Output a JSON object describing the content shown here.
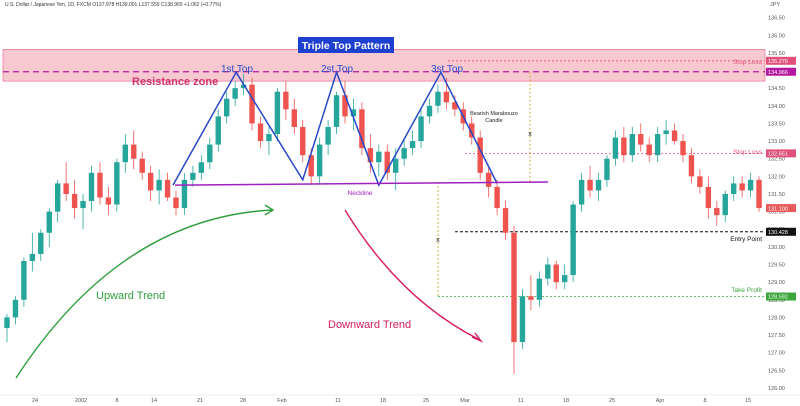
{
  "header": {
    "ticker_info": "U.S. Dollar / Japanese Yen, 1D, FXCM  O137.978  H139.001  L137.559  C138.965  +1.062 (+0.77%)",
    "currency": "JPY"
  },
  "chart_data": {
    "type": "candlestick",
    "title": "Triple Top Pattern",
    "y_axis": {
      "range": [
        125.8,
        137.0
      ],
      "ticks": [
        "136.50",
        "136.00",
        "135.50",
        "135.00",
        "134.50",
        "134.00",
        "133.50",
        "133.00",
        "132.50",
        "132.00",
        "131.50",
        "131.00",
        "130.50",
        "130.00",
        "129.50",
        "129.00",
        "128.50",
        "128.00",
        "127.50",
        "127.00",
        "126.50",
        "126.00"
      ]
    },
    "x_axis": {
      "ticks": [
        "24",
        "2002",
        "8",
        "14",
        "21",
        "28",
        "Feb",
        "11",
        "18",
        "25",
        "Mar",
        "11",
        "18",
        "25",
        "Apr",
        "8",
        "15"
      ]
    },
    "price_labels": [
      {
        "value": "135.276",
        "color": "#e0507a"
      },
      {
        "value": "134.966",
        "color": "#b5179e"
      },
      {
        "value": "132.651",
        "color": "#e0507a"
      },
      {
        "value": "131.100",
        "color": "#e85a5a"
      },
      {
        "value": "130.428",
        "color": "#111111"
      },
      {
        "value": "128.592",
        "color": "#3ca53c"
      }
    ],
    "levels": {
      "resistance_zone": [
        134.7,
        135.6
      ],
      "resistance_line": 134.966,
      "stop_loss_1": 135.276,
      "stop_loss_2": 132.651,
      "entry_point": 130.428,
      "take_profit": 128.592,
      "neckline_start": 131.75,
      "neckline_end": 131.84
    },
    "candles": [
      {
        "o": 127.7,
        "h": 128.1,
        "l": 127.3,
        "c": 128.0
      },
      {
        "o": 128.0,
        "h": 128.6,
        "l": 127.8,
        "c": 128.5
      },
      {
        "o": 128.5,
        "h": 129.7,
        "l": 128.3,
        "c": 129.6
      },
      {
        "o": 129.6,
        "h": 130.4,
        "l": 129.3,
        "c": 129.8
      },
      {
        "o": 129.8,
        "h": 130.5,
        "l": 129.6,
        "c": 130.4
      },
      {
        "o": 130.4,
        "h": 131.1,
        "l": 130.0,
        "c": 131.0
      },
      {
        "o": 131.0,
        "h": 131.9,
        "l": 130.7,
        "c": 131.8
      },
      {
        "o": 131.8,
        "h": 132.4,
        "l": 131.3,
        "c": 131.5
      },
      {
        "o": 131.5,
        "h": 131.9,
        "l": 130.8,
        "c": 131.1
      },
      {
        "o": 131.1,
        "h": 131.5,
        "l": 130.5,
        "c": 131.3
      },
      {
        "o": 131.3,
        "h": 132.3,
        "l": 131.0,
        "c": 132.1
      },
      {
        "o": 132.1,
        "h": 132.4,
        "l": 131.2,
        "c": 131.4
      },
      {
        "o": 131.4,
        "h": 131.7,
        "l": 130.9,
        "c": 131.2
      },
      {
        "o": 131.2,
        "h": 132.5,
        "l": 131.0,
        "c": 132.4
      },
      {
        "o": 132.4,
        "h": 133.2,
        "l": 132.1,
        "c": 132.9
      },
      {
        "o": 132.9,
        "h": 133.3,
        "l": 132.2,
        "c": 132.5
      },
      {
        "o": 132.5,
        "h": 132.7,
        "l": 131.9,
        "c": 132.1
      },
      {
        "o": 132.1,
        "h": 132.3,
        "l": 131.3,
        "c": 131.6
      },
      {
        "o": 131.6,
        "h": 132.2,
        "l": 131.2,
        "c": 131.9
      },
      {
        "o": 131.9,
        "h": 132.1,
        "l": 131.3,
        "c": 131.4
      },
      {
        "o": 131.4,
        "h": 131.6,
        "l": 130.9,
        "c": 131.1
      },
      {
        "o": 131.1,
        "h": 132.1,
        "l": 130.9,
        "c": 131.9
      },
      {
        "o": 131.9,
        "h": 132.3,
        "l": 131.7,
        "c": 132.1
      },
      {
        "o": 132.1,
        "h": 132.6,
        "l": 131.9,
        "c": 132.4
      },
      {
        "o": 132.4,
        "h": 133.1,
        "l": 132.2,
        "c": 132.9
      },
      {
        "o": 132.9,
        "h": 133.9,
        "l": 132.7,
        "c": 133.7
      },
      {
        "o": 133.7,
        "h": 134.4,
        "l": 133.5,
        "c": 134.2
      },
      {
        "o": 134.2,
        "h": 134.7,
        "l": 134.0,
        "c": 134.5
      },
      {
        "o": 134.5,
        "h": 134.9,
        "l": 134.3,
        "c": 134.6
      },
      {
        "o": 134.6,
        "h": 134.8,
        "l": 133.3,
        "c": 133.5
      },
      {
        "o": 133.5,
        "h": 133.7,
        "l": 132.8,
        "c": 133.0
      },
      {
        "o": 133.0,
        "h": 133.4,
        "l": 132.6,
        "c": 133.2
      },
      {
        "o": 133.2,
        "h": 134.5,
        "l": 133.0,
        "c": 134.4
      },
      {
        "o": 134.4,
        "h": 134.7,
        "l": 133.6,
        "c": 133.9
      },
      {
        "o": 133.9,
        "h": 134.2,
        "l": 133.2,
        "c": 133.4
      },
      {
        "o": 133.4,
        "h": 133.6,
        "l": 132.4,
        "c": 132.6
      },
      {
        "o": 132.6,
        "h": 132.8,
        "l": 131.8,
        "c": 132.0
      },
      {
        "o": 132.0,
        "h": 133.1,
        "l": 131.8,
        "c": 132.9
      },
      {
        "o": 132.9,
        "h": 133.6,
        "l": 132.6,
        "c": 133.4
      },
      {
        "o": 133.4,
        "h": 134.4,
        "l": 133.2,
        "c": 134.3
      },
      {
        "o": 134.3,
        "h": 134.7,
        "l": 133.5,
        "c": 133.7
      },
      {
        "o": 133.7,
        "h": 134.2,
        "l": 133.3,
        "c": 133.9
      },
      {
        "o": 133.9,
        "h": 134.1,
        "l": 132.6,
        "c": 132.8
      },
      {
        "o": 132.8,
        "h": 133.2,
        "l": 132.1,
        "c": 132.4
      },
      {
        "o": 132.4,
        "h": 132.9,
        "l": 132.0,
        "c": 132.7
      },
      {
        "o": 132.7,
        "h": 132.9,
        "l": 131.9,
        "c": 132.1
      },
      {
        "o": 132.1,
        "h": 132.8,
        "l": 131.6,
        "c": 132.5
      },
      {
        "o": 132.5,
        "h": 133.0,
        "l": 132.3,
        "c": 132.8
      },
      {
        "o": 132.8,
        "h": 133.3,
        "l": 132.6,
        "c": 133.0
      },
      {
        "o": 133.0,
        "h": 133.9,
        "l": 132.8,
        "c": 133.7
      },
      {
        "o": 133.7,
        "h": 134.2,
        "l": 133.5,
        "c": 134.0
      },
      {
        "o": 134.0,
        "h": 134.6,
        "l": 133.8,
        "c": 134.4
      },
      {
        "o": 134.4,
        "h": 134.8,
        "l": 133.9,
        "c": 134.1
      },
      {
        "o": 134.1,
        "h": 134.3,
        "l": 133.7,
        "c": 133.9
      },
      {
        "o": 133.9,
        "h": 134.1,
        "l": 133.3,
        "c": 133.5
      },
      {
        "o": 133.5,
        "h": 133.7,
        "l": 132.9,
        "c": 133.1
      },
      {
        "o": 133.1,
        "h": 133.3,
        "l": 131.9,
        "c": 132.1
      },
      {
        "o": 132.1,
        "h": 132.3,
        "l": 131.4,
        "c": 131.7
      },
      {
        "o": 131.7,
        "h": 131.9,
        "l": 130.9,
        "c": 131.1
      },
      {
        "o": 131.1,
        "h": 131.3,
        "l": 130.2,
        "c": 130.4
      },
      {
        "o": 130.4,
        "h": 130.6,
        "l": 126.4,
        "c": 127.3
      },
      {
        "o": 127.3,
        "h": 128.8,
        "l": 127.1,
        "c": 128.6
      },
      {
        "o": 128.6,
        "h": 129.2,
        "l": 128.2,
        "c": 128.5
      },
      {
        "o": 128.5,
        "h": 129.3,
        "l": 128.3,
        "c": 129.1
      },
      {
        "o": 129.1,
        "h": 129.7,
        "l": 128.9,
        "c": 129.5
      },
      {
        "o": 129.5,
        "h": 129.6,
        "l": 128.8,
        "c": 129.0
      },
      {
        "o": 129.0,
        "h": 129.5,
        "l": 128.8,
        "c": 129.2
      },
      {
        "o": 129.2,
        "h": 131.3,
        "l": 129.0,
        "c": 131.2
      },
      {
        "o": 131.2,
        "h": 132.1,
        "l": 131.0,
        "c": 131.9
      },
      {
        "o": 131.9,
        "h": 132.3,
        "l": 131.4,
        "c": 131.6
      },
      {
        "o": 131.6,
        "h": 132.1,
        "l": 131.3,
        "c": 131.9
      },
      {
        "o": 131.9,
        "h": 132.6,
        "l": 131.7,
        "c": 132.5
      },
      {
        "o": 132.5,
        "h": 133.3,
        "l": 132.3,
        "c": 133.1
      },
      {
        "o": 133.1,
        "h": 133.4,
        "l": 132.4,
        "c": 132.6
      },
      {
        "o": 132.6,
        "h": 133.4,
        "l": 132.4,
        "c": 133.2
      },
      {
        "o": 133.2,
        "h": 133.5,
        "l": 132.7,
        "c": 132.9
      },
      {
        "o": 132.9,
        "h": 133.1,
        "l": 132.4,
        "c": 132.6
      },
      {
        "o": 132.6,
        "h": 133.4,
        "l": 132.4,
        "c": 133.2
      },
      {
        "o": 133.2,
        "h": 133.6,
        "l": 132.9,
        "c": 133.3
      },
      {
        "o": 133.3,
        "h": 133.5,
        "l": 132.9,
        "c": 133.0
      },
      {
        "o": 133.0,
        "h": 133.2,
        "l": 132.4,
        "c": 132.6
      },
      {
        "o": 132.6,
        "h": 132.8,
        "l": 131.8,
        "c": 132.0
      },
      {
        "o": 132.0,
        "h": 132.2,
        "l": 131.5,
        "c": 131.7
      },
      {
        "o": 131.7,
        "h": 132.0,
        "l": 130.8,
        "c": 131.1
      },
      {
        "o": 131.1,
        "h": 131.3,
        "l": 130.6,
        "c": 130.9
      },
      {
        "o": 130.9,
        "h": 131.6,
        "l": 130.7,
        "c": 131.5
      },
      {
        "o": 131.5,
        "h": 132.0,
        "l": 131.3,
        "c": 131.8
      },
      {
        "o": 131.8,
        "h": 132.0,
        "l": 131.4,
        "c": 131.6
      },
      {
        "o": 131.6,
        "h": 132.1,
        "l": 131.4,
        "c": 131.9
      },
      {
        "o": 131.9,
        "h": 132.0,
        "l": 131.0,
        "c": 131.1
      }
    ]
  },
  "annotations": {
    "pattern_title": "Triple Top Pattern",
    "top_1": "1st Top",
    "top_2": "2st Top",
    "top_3": "3st Top",
    "resistance_zone": "Resistance zone",
    "neckline": "Neckline",
    "bearish_candle_line1": "Bearish Marabouzo",
    "bearish_candle_line2": "Candle",
    "upward_trend": "Upward Trend",
    "downward_trend": "Downward Trend",
    "stop_loss_1": "Stop Loss",
    "stop_loss_2": "Stop Loss",
    "entry_point": "Entry Point",
    "take_profit": "Take Profit",
    "x_mark_1": "x",
    "x_mark_2": "x"
  },
  "colors": {
    "bull": "#26a69a",
    "bear": "#ef5350",
    "pattern_line": "#2648c8",
    "neckline": "#a020c0",
    "resistance_zone": "#f8c8d0",
    "resistance_line": "#b5179e",
    "stop_loss": "#e0507a",
    "entry": "#111111",
    "take_profit": "#3ca53c",
    "target_dotted": "#e0a020",
    "upward": "#2e9e3a",
    "downward": "#d81b60",
    "title_bg": "#1e40d0"
  }
}
